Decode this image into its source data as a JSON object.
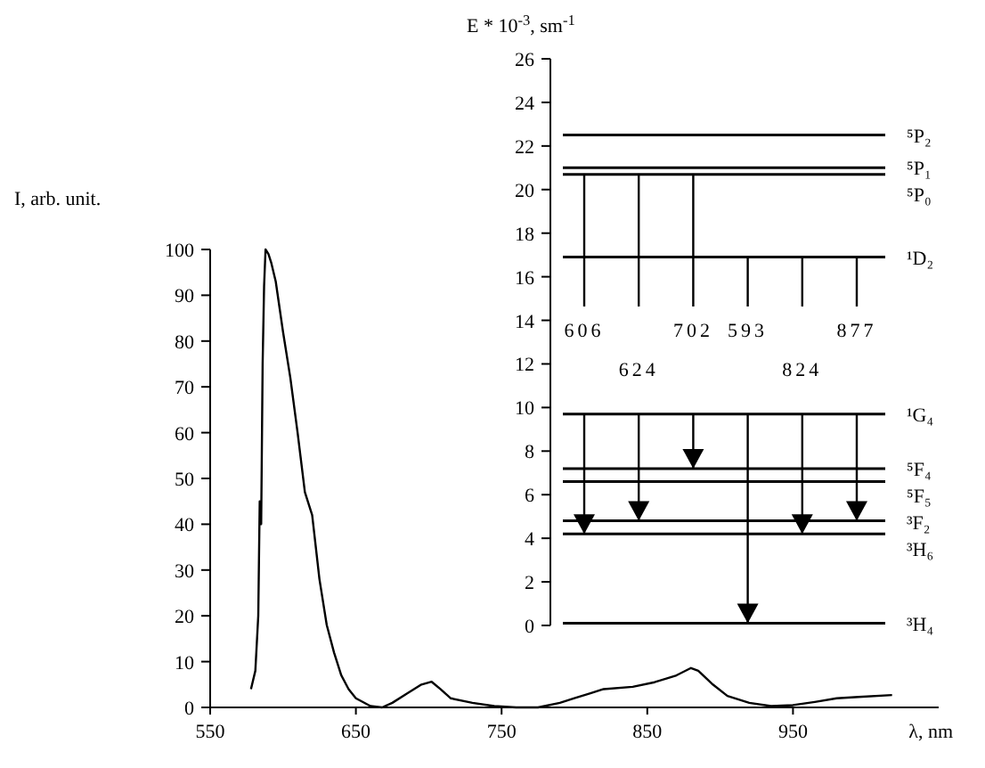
{
  "chart_data": [
    {
      "type": "line",
      "xlabel": "λ, nm",
      "ylabel": "I, arb. unit.",
      "xlim": [
        550,
        1050
      ],
      "ylim": [
        0,
        100
      ],
      "xticks": [
        550,
        650,
        750,
        850,
        950
      ],
      "yticks": [
        0,
        10,
        20,
        30,
        40,
        50,
        60,
        70,
        80,
        90,
        100
      ],
      "color": "#000000",
      "x": [
        578,
        581,
        583,
        584,
        585,
        586,
        587,
        588,
        590,
        592,
        595,
        600,
        605,
        610,
        615,
        620,
        625,
        630,
        635,
        640,
        645,
        650,
        660,
        668,
        675,
        685,
        695,
        702,
        708,
        715,
        730,
        745,
        760,
        775,
        790,
        800,
        810,
        820,
        840,
        855,
        870,
        880,
        885,
        895,
        905,
        920,
        935,
        950,
        965,
        980,
        995,
        1018
      ],
      "values": [
        4,
        8,
        20,
        45,
        40,
        75,
        92,
        100,
        99,
        97,
        93,
        82,
        72,
        60,
        47,
        42,
        28,
        18,
        12,
        7,
        4,
        2,
        0.3,
        0,
        1,
        3,
        5,
        5.6,
        4,
        2,
        1,
        0.3,
        0,
        0,
        1,
        2,
        3,
        4,
        4.5,
        5.5,
        7,
        8.6,
        8,
        5,
        2.5,
        1,
        0.3,
        0.5,
        1.2,
        2,
        2.3,
        2.7
      ]
    },
    {
      "type": "bar",
      "ylabel": "E * 10$^{-3}$, sm$^{-1}$",
      "ylim": [
        0,
        26
      ],
      "yticks": [
        0,
        2,
        4,
        6,
        8,
        10,
        12,
        14,
        16,
        18,
        20,
        22,
        24,
        26
      ],
      "tick_labels": "y",
      "color": "#000000",
      "categories": [
        null,
        null,
        null,
        null,
        null,
        null
      ],
      "base": [
        4.2,
        4.8,
        7.2,
        0.1,
        4.2,
        4.8
      ],
      "values": [
        16.5,
        15.9,
        13.5,
        16.8,
        12.7,
        12.1
      ],
      "ref_lines": [
        {
          "axis": "y",
          "value": 22.5,
          "label": "⁵P₂"
        },
        {
          "axis": "y",
          "value": 21,
          "label": "⁵P₁"
        },
        {
          "axis": "y",
          "value": 20.7,
          "label": "⁵P₀"
        },
        {
          "axis": "y",
          "value": 16.9,
          "label": "¹D₂"
        },
        {
          "axis": "y",
          "value": 9.7,
          "label": "¹G₄"
        },
        {
          "axis": "y",
          "value": 7.2,
          "label": "⁵F₄"
        },
        {
          "axis": "y",
          "value": 6.6,
          "label": "⁵F₅"
        },
        {
          "axis": "y",
          "value": 4.8,
          "label": "³F₂"
        },
        {
          "axis": "y",
          "value": 4.2,
          "label": "³H₆"
        },
        {
          "axis": "y",
          "value": 0.1,
          "label": "³H₄"
        }
      ],
      "annotations": [
        "606",
        "702",
        "593",
        "877",
        "624",
        "824"
      ]
    }
  ]
}
